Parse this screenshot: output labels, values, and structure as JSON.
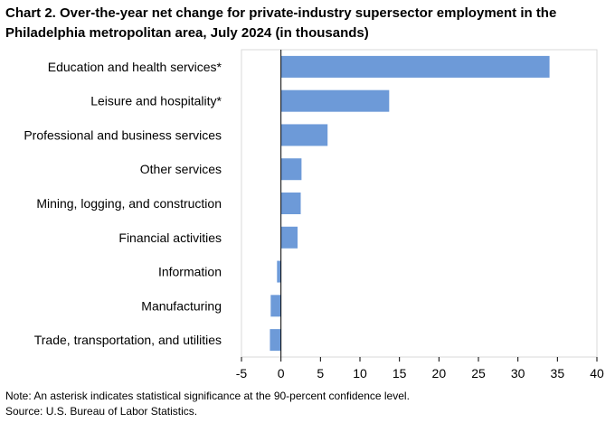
{
  "chart_data": {
    "type": "bar",
    "orientation": "horizontal",
    "title": "Chart 2. Over-the-year net change for private-industry supersector employment in the Philadelphia metropolitan area, July 2024 (in thousands)",
    "categories": [
      "Education and health services*",
      "Leisure and hospitality*",
      "Professional and business services",
      "Other services",
      "Mining, logging, and construction",
      "Financial activities",
      "Information",
      "Manufacturing",
      "Trade, transportation, and utilities"
    ],
    "values": [
      34.0,
      13.7,
      5.9,
      2.6,
      2.5,
      2.1,
      -0.5,
      -1.3,
      -1.4
    ],
    "xlim": [
      -5,
      40
    ],
    "xticks": [
      -5,
      0,
      5,
      10,
      15,
      20,
      25,
      30,
      35,
      40
    ],
    "xlabel": "",
    "ylabel": "",
    "bar_color": "#6d9ad8",
    "grid": false
  },
  "notes": {
    "note": "Note: An asterisk indicates statistical significance at the 90-percent confidence level.",
    "source": "Source: U.S. Bureau of Labor Statistics."
  }
}
